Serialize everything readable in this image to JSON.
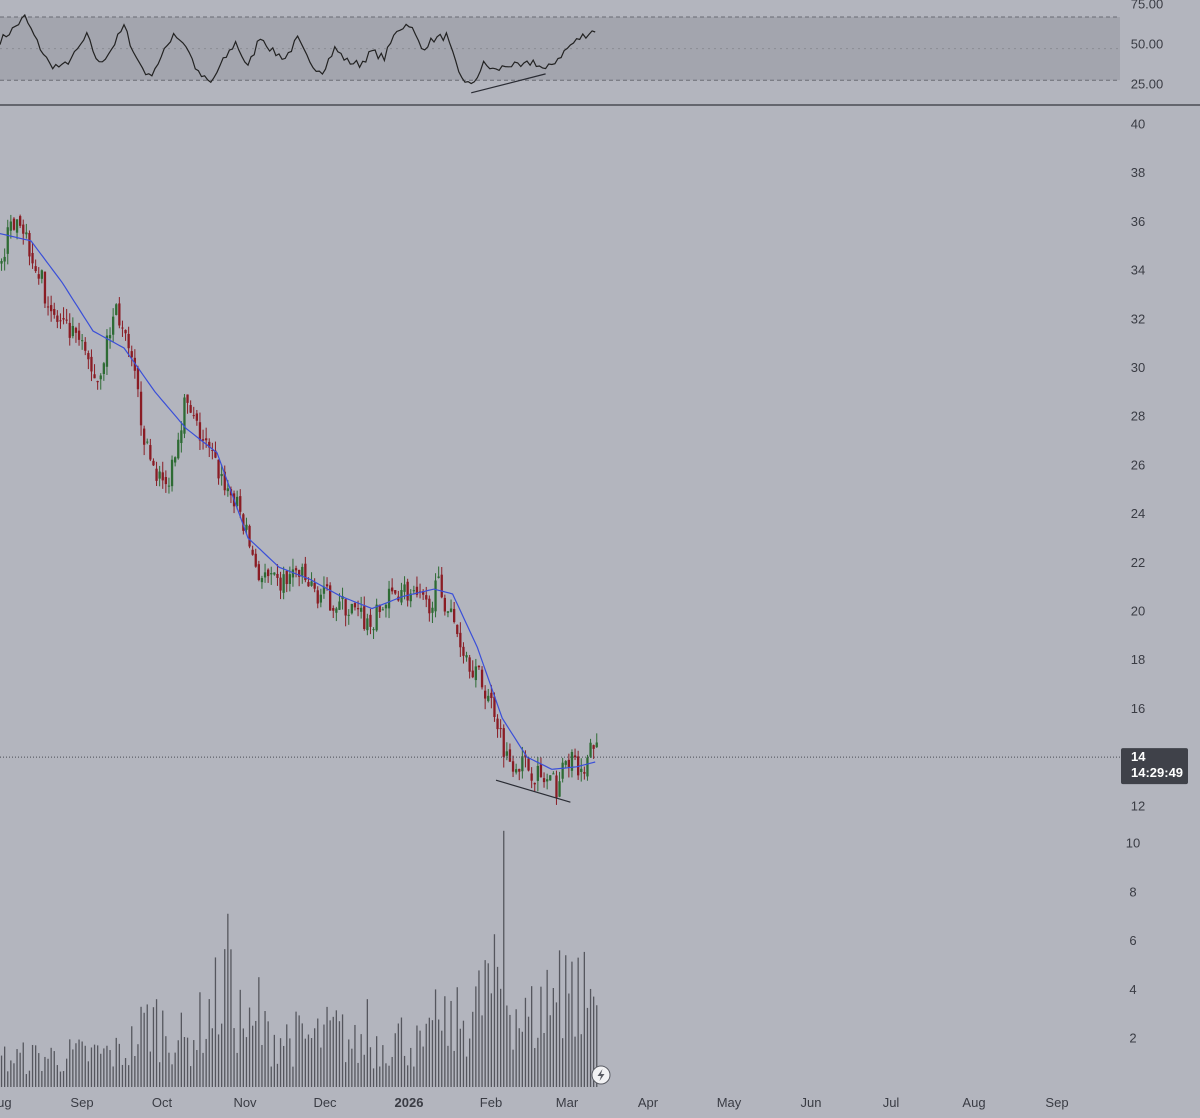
{
  "chart_data": {
    "type": "candlestick",
    "price_axis": {
      "ticks": [
        12,
        14,
        16,
        18,
        20,
        22,
        24,
        26,
        28,
        30,
        32,
        34,
        36,
        38,
        40
      ],
      "range": [
        11.9,
        40.6
      ]
    },
    "volume_axis": {
      "ticks": [
        2,
        4,
        6,
        8,
        10
      ],
      "range": [
        0,
        10.6
      ]
    },
    "rsi_axis": {
      "ticks": [
        "25.00",
        "50.00",
        "75.00"
      ],
      "band": [
        30,
        70
      ]
    },
    "time_axis": {
      "labels": [
        "Aug",
        "Sep",
        "Oct",
        "Nov",
        "Dec",
        "2026",
        "Feb",
        "Mar",
        "Apr",
        "May",
        "Jun",
        "Jul",
        "Aug",
        "Sep"
      ],
      "bold_label": "2026"
    },
    "last_price": {
      "price_label": "14",
      "price_value": 14,
      "countdown": "14:29:49"
    },
    "trend_anchors": [
      [
        0,
        34.2
      ],
      [
        6,
        36.5
      ],
      [
        10,
        35.0
      ],
      [
        18,
        32.0
      ],
      [
        26,
        31.0
      ],
      [
        32,
        29.5
      ],
      [
        38,
        32.5
      ],
      [
        44,
        29.5
      ],
      [
        48,
        26.5
      ],
      [
        54,
        25.0
      ],
      [
        60,
        28.5
      ],
      [
        66,
        27.0
      ],
      [
        72,
        25.5
      ],
      [
        78,
        24.0
      ],
      [
        84,
        21.5
      ],
      [
        90,
        21.0
      ],
      [
        96,
        21.6
      ],
      [
        102,
        20.8
      ],
      [
        108,
        20.4
      ],
      [
        114,
        20.0
      ],
      [
        120,
        19.4
      ],
      [
        126,
        20.5
      ],
      [
        130,
        21.0
      ],
      [
        134,
        20.5
      ],
      [
        138,
        20.2
      ],
      [
        142,
        21.0
      ],
      [
        146,
        19.8
      ],
      [
        150,
        18.5
      ],
      [
        156,
        17.0
      ],
      [
        160,
        16.0
      ],
      [
        164,
        14.0
      ],
      [
        168,
        13.8
      ],
      [
        172,
        13.5
      ],
      [
        176,
        13.0
      ],
      [
        180,
        12.8
      ],
      [
        184,
        14.0
      ],
      [
        188,
        13.2
      ],
      [
        192,
        14.6
      ]
    ],
    "ma_anchors": [
      [
        0,
        35.5
      ],
      [
        10,
        35.2
      ],
      [
        20,
        33.5
      ],
      [
        30,
        31.5
      ],
      [
        40,
        30.8
      ],
      [
        50,
        29.0
      ],
      [
        60,
        27.5
      ],
      [
        70,
        26.5
      ],
      [
        80,
        23.0
      ],
      [
        90,
        21.8
      ],
      [
        100,
        21.3
      ],
      [
        110,
        20.6
      ],
      [
        120,
        20.1
      ],
      [
        130,
        20.6
      ],
      [
        140,
        20.9
      ],
      [
        146,
        20.7
      ],
      [
        154,
        18.5
      ],
      [
        162,
        15.6
      ],
      [
        170,
        14.0
      ],
      [
        178,
        13.5
      ],
      [
        186,
        13.6
      ],
      [
        192,
        13.8
      ]
    ],
    "rsi_anchors": [
      [
        0,
        55
      ],
      [
        4,
        62
      ],
      [
        8,
        70
      ],
      [
        12,
        54
      ],
      [
        16,
        40
      ],
      [
        20,
        38
      ],
      [
        24,
        46
      ],
      [
        28,
        58
      ],
      [
        32,
        40
      ],
      [
        36,
        50
      ],
      [
        40,
        64
      ],
      [
        44,
        44
      ],
      [
        48,
        32
      ],
      [
        52,
        44
      ],
      [
        56,
        60
      ],
      [
        60,
        52
      ],
      [
        64,
        34
      ],
      [
        68,
        28
      ],
      [
        72,
        42
      ],
      [
        76,
        54
      ],
      [
        80,
        38
      ],
      [
        84,
        58
      ],
      [
        88,
        48
      ],
      [
        92,
        44
      ],
      [
        96,
        56
      ],
      [
        100,
        40
      ],
      [
        104,
        36
      ],
      [
        108,
        50
      ],
      [
        112,
        42
      ],
      [
        116,
        40
      ],
      [
        120,
        48
      ],
      [
        124,
        44
      ],
      [
        128,
        62
      ],
      [
        132,
        66
      ],
      [
        136,
        50
      ],
      [
        140,
        56
      ],
      [
        144,
        58
      ],
      [
        148,
        34
      ],
      [
        152,
        26
      ],
      [
        156,
        40
      ],
      [
        160,
        36
      ],
      [
        164,
        40
      ],
      [
        168,
        38
      ],
      [
        172,
        42
      ],
      [
        176,
        36
      ],
      [
        180,
        44
      ],
      [
        184,
        52
      ],
      [
        188,
        58
      ],
      [
        192,
        62
      ]
    ],
    "volume_anchors": [
      [
        0,
        1.3
      ],
      [
        40,
        1.6
      ],
      [
        48,
        3.2
      ],
      [
        60,
        2.0
      ],
      [
        72,
        4.6
      ],
      [
        80,
        2.5
      ],
      [
        100,
        2.2
      ],
      [
        108,
        2.6
      ],
      [
        114,
        1.9
      ],
      [
        122,
        2.0
      ],
      [
        128,
        2.4
      ],
      [
        136,
        1.8
      ],
      [
        142,
        2.6
      ],
      [
        150,
        3.2
      ],
      [
        158,
        4.4
      ],
      [
        162,
        5.0
      ],
      [
        168,
        3.0
      ],
      [
        176,
        3.6
      ],
      [
        184,
        4.5
      ],
      [
        192,
        4.0
      ]
    ],
    "volume_spikes": [
      [
        73,
        7.1
      ],
      [
        83,
        4.5
      ],
      [
        118,
        3.6
      ],
      [
        140,
        4.0
      ],
      [
        156,
        5.2
      ],
      [
        162,
        10.5
      ],
      [
        176,
        4.8
      ],
      [
        180,
        5.6
      ],
      [
        182,
        5.4
      ]
    ],
    "annotations": [
      {
        "kind": "trendline",
        "pane": "price",
        "from": [
          160,
          13.05
        ],
        "to": [
          184,
          12.15
        ]
      },
      {
        "kind": "trendline",
        "pane": "rsi",
        "from": [
          152,
          22
        ],
        "to": [
          176,
          34
        ]
      }
    ],
    "colors": {
      "background": "#b3b5be",
      "up": "#2e6b34",
      "down": "#8a1c24",
      "ma": "#3a4fd8",
      "rsi": "#222222",
      "rsi_band": "#a3a5ae",
      "volume": "#55565e",
      "axis_text": "#3a3c44",
      "badge": "#3f4149"
    }
  }
}
